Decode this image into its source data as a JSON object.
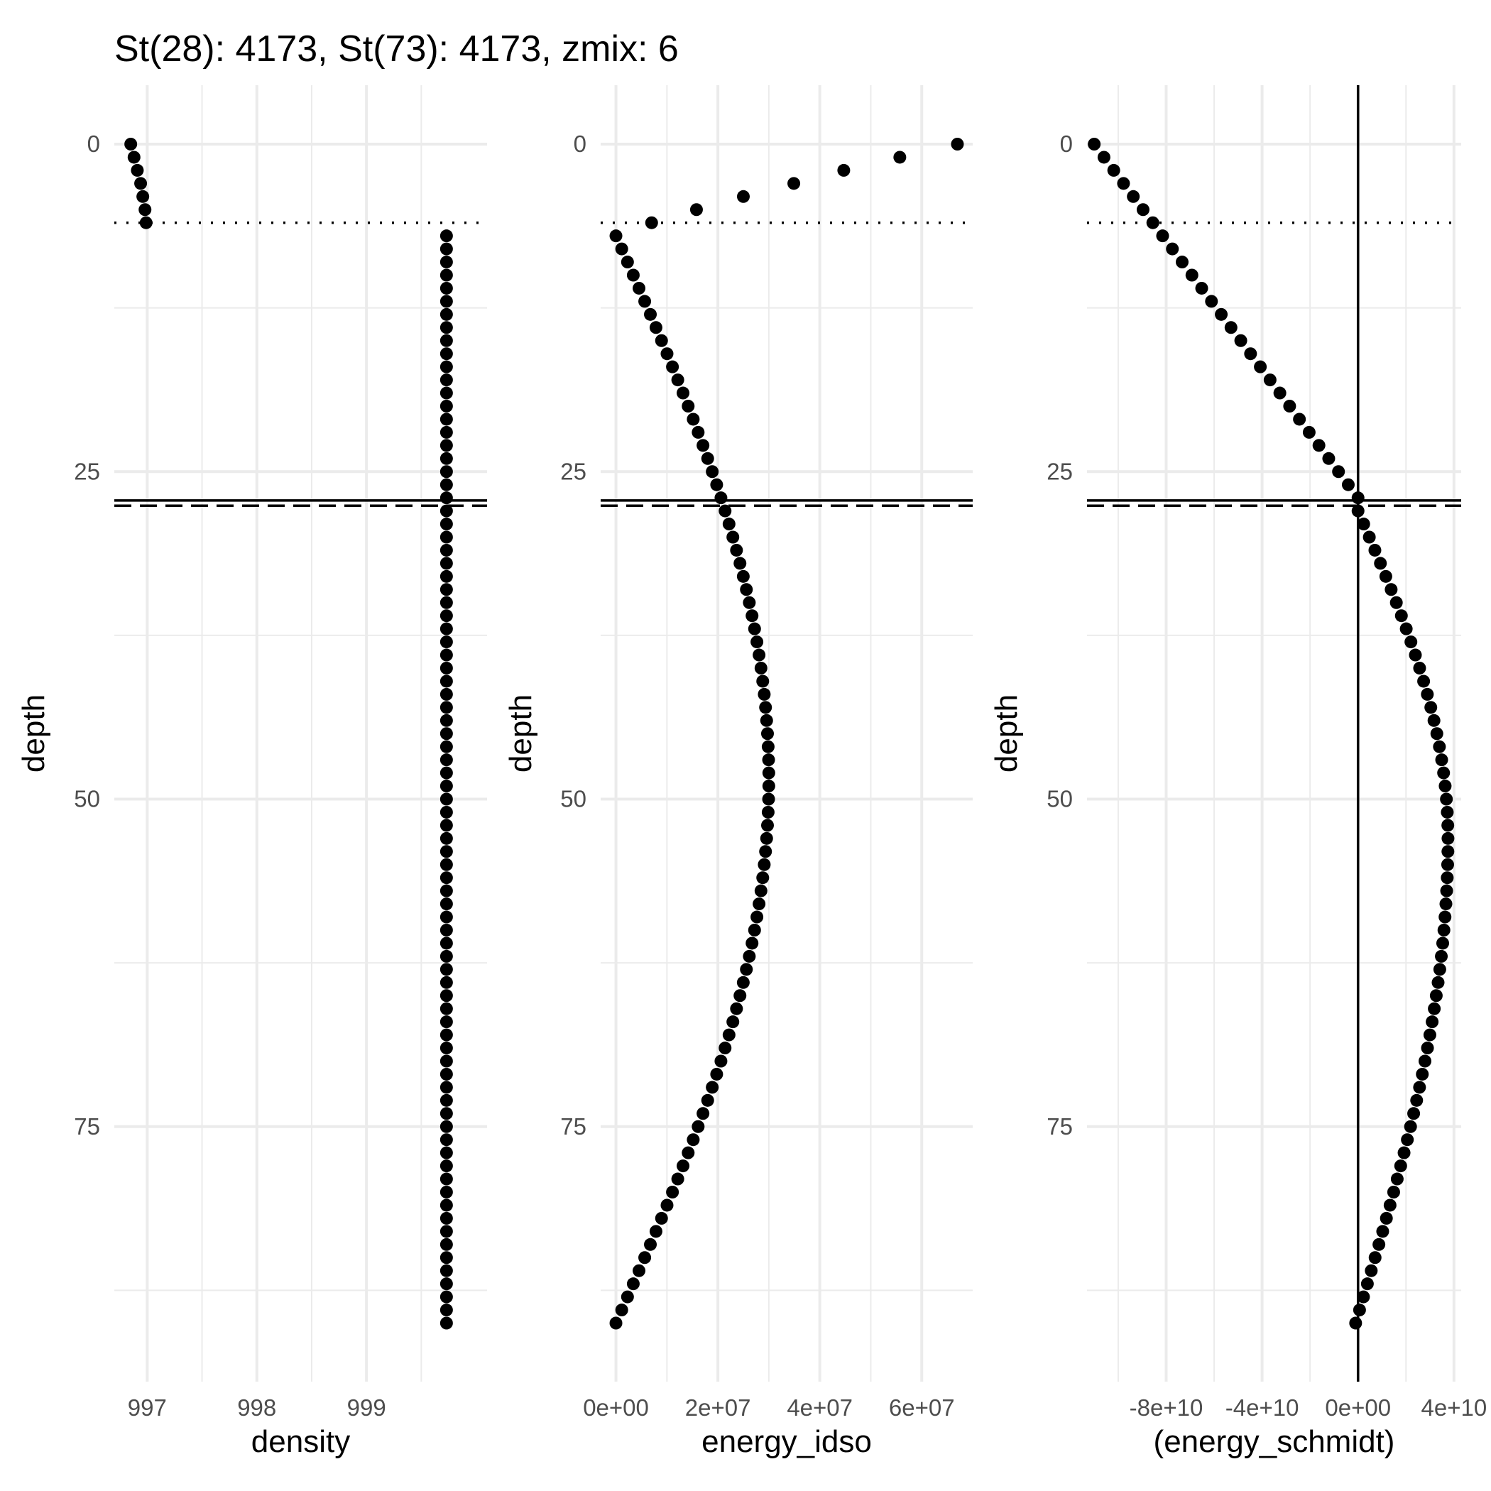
{
  "chart_data": [
    {
      "type": "scatter",
      "title": "St(28): 4173, St(73): 4173, zmix: 6",
      "xlabel": "density",
      "ylabel": "depth",
      "y_reversed": true,
      "xlim": [
        996.7,
        1000.1
      ],
      "ylim": [
        0,
        93
      ],
      "x_ticks": [
        997,
        998,
        999
      ],
      "x_tick_labels": [
        "997",
        "998",
        "999"
      ],
      "y_ticks": [
        0,
        25,
        50,
        75
      ],
      "y_tick_labels": [
        "0",
        "25",
        "50",
        "75"
      ],
      "grid": true,
      "hlines": {
        "dotted": 6,
        "solid": 27.2,
        "dashed": 27.6
      },
      "series": [
        {
          "points_upper": {
            "depth": [
              0,
              1,
              2,
              3,
              4,
              5,
              6
            ],
            "x": [
              996.85,
              996.88,
              996.91,
              996.94,
              996.96,
              996.98,
              996.99
            ]
          },
          "points_lower": {
            "depth_from": 7,
            "depth_to": 90,
            "depth_step": 1,
            "x": 999.73
          }
        }
      ]
    },
    {
      "type": "scatter",
      "xlabel": "energy_idso",
      "ylabel": "depth",
      "y_reversed": true,
      "xlim": [
        -3000000,
        70000000
      ],
      "ylim": [
        0,
        93
      ],
      "x_ticks": [
        0,
        20000000,
        40000000,
        60000000
      ],
      "x_tick_labels": [
        "0e+00",
        "2e+07",
        "4e+07",
        "6e+07"
      ],
      "y_ticks": [
        0,
        25,
        50,
        75
      ],
      "y_tick_labels": [
        "0",
        "25",
        "50",
        "75"
      ],
      "grid": true,
      "hlines": {
        "dotted": 6,
        "solid": 27.2,
        "dashed": 27.6
      },
      "series": [
        {
          "points_upper": {
            "depth": [
              0,
              1,
              2,
              3,
              4,
              5,
              6
            ],
            "x": [
              67000000,
              55700000,
              44700000,
              34900000,
              25000000,
              15800000,
              7000000
            ]
          },
          "points_lower": {
            "depth_from": 7,
            "depth_to": 90,
            "depth_step": 1,
            "peak_depth": 48.5,
            "peak_x": 30000000,
            "end_x": 0,
            "shape": "sine"
          }
        }
      ]
    },
    {
      "type": "scatter",
      "xlabel": "(energy_schmidt)",
      "ylabel": "depth",
      "y_reversed": true,
      "xlim": [
        -113000000000,
        43000000000
      ],
      "ylim": [
        0,
        93
      ],
      "x_ticks": [
        -80000000000,
        -40000000000,
        0,
        40000000000
      ],
      "x_tick_labels": [
        "-8e+10",
        "-4e+10",
        "0e+00",
        "4e+10"
      ],
      "y_ticks": [
        0,
        25,
        50,
        75
      ],
      "y_tick_labels": [
        "0",
        "25",
        "50",
        "75"
      ],
      "grid": true,
      "vline_zero": 0,
      "hlines": {
        "dotted": 6,
        "solid": 27.2,
        "dashed": 27.6
      },
      "series": [
        {
          "points_upper": {
            "depth_from": 0,
            "depth_to": 27,
            "depth_step": 1,
            "x_start": -110000000000,
            "x_end": 0
          },
          "points_lower": {
            "depth_from": 28,
            "depth_to": 90,
            "depth_step": 1,
            "peak_depth": 53,
            "peak_x": 37500000000,
            "end_x": -1000000000,
            "shape": "sine"
          }
        }
      ]
    }
  ]
}
